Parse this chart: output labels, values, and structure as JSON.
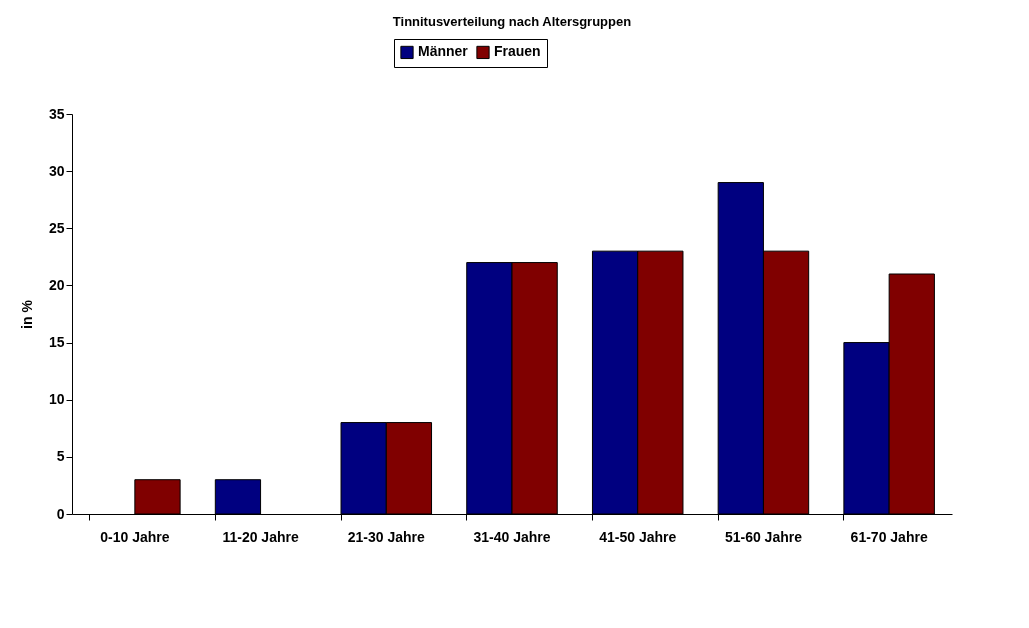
{
  "chart_data": {
    "type": "bar",
    "title": "Tinnitusverteilung nach Altersgruppen",
    "ylabel": "in %",
    "categories": [
      "0-10 Jahre",
      "11-20 Jahre",
      "21-30 Jahre",
      "31-40 Jahre",
      "41-50 Jahre",
      "51-60 Jahre",
      "61-70 Jahre"
    ],
    "series": [
      {
        "name": "Männer",
        "color": "#000080",
        "values": [
          null,
          3,
          8,
          22,
          23,
          29,
          15
        ]
      },
      {
        "name": "Frauen",
        "color": "#800000",
        "values": [
          3,
          null,
          8,
          22,
          23,
          23,
          21
        ]
      }
    ],
    "ylim": [
      0,
      35
    ],
    "yticks": [
      0,
      5,
      10,
      15,
      20,
      25,
      30,
      35
    ],
    "grid": false,
    "legend": "top"
  }
}
